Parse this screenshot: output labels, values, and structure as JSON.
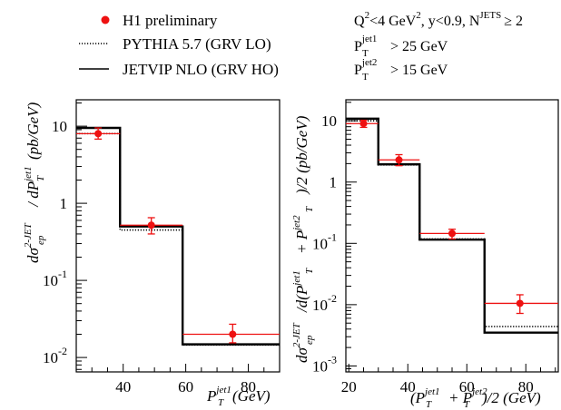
{
  "legend": {
    "h1_label": "H1 preliminary",
    "pythia_label": "PYTHIA 5.7 (GRV LO)",
    "jetvip_label": "JETVIP NLO (GRV HO)",
    "h1_color": "#ee1111",
    "pythia_style": "dotted",
    "jetvip_style": "solid"
  },
  "cuts": {
    "line1": {
      "q2": "Q",
      "q2_sup": "2",
      "q2_rest": "<4 GeV",
      "gev_sup": "2",
      "y_cut": ", y<0.9, N",
      "njets_sup": "JETS",
      "njets_rest": "≥ 2"
    },
    "line2": {
      "p": "P",
      "sup": "jet1",
      "sub": "T",
      "rest": "> 25 GeV"
    },
    "line3": {
      "p": "P",
      "sup": "jet2",
      "sub": "T",
      "rest": "> 15 GeV"
    }
  },
  "chart_data": [
    {
      "type": "line",
      "xlabel_parts": {
        "p": "P",
        "sup": "jet1",
        "sub": "T",
        "rest": "(GeV)"
      },
      "ylabel_parts": {
        "a": "dσ",
        "sup": "2-JET",
        "sub": "ep",
        "b": " / dP",
        "sup2": "jet1",
        "sub2": "T",
        "c": "(pb/GeV)"
      },
      "xlim": [
        25,
        90
      ],
      "ylim": [
        0.0065,
        22
      ],
      "y_scale": "log",
      "x_ticks": [
        40,
        60,
        80
      ],
      "y_ticks": [
        {
          "value": 10,
          "base": "10",
          "exp": ""
        },
        {
          "value": 1,
          "base": "1",
          "exp": ""
        },
        {
          "value": 0.1,
          "base": "10",
          "exp": "-1"
        },
        {
          "value": 0.01,
          "base": "10",
          "exp": "-2"
        }
      ],
      "bin_edges": [
        25,
        39,
        59,
        90
      ],
      "series": [
        {
          "name": "H1 preliminary",
          "kind": "points",
          "x": [
            32,
            49,
            75
          ],
          "y": [
            8.0,
            0.52,
            0.02
          ],
          "y_low": [
            6.8,
            0.4,
            0.0155
          ],
          "y_high": [
            9.5,
            0.65,
            0.027
          ],
          "bin_low": [
            25,
            39,
            59
          ],
          "bin_high": [
            39,
            59,
            90
          ]
        },
        {
          "name": "PYTHIA 5.7 (GRV LO)",
          "kind": "step",
          "values": [
            8.0,
            0.45,
            0.0145
          ]
        },
        {
          "name": "JETVIP NLO (GRV HO)",
          "kind": "step",
          "values": [
            9.5,
            0.5,
            0.0148
          ]
        }
      ]
    },
    {
      "type": "line",
      "xlabel_parts": {
        "a": "(P",
        "sup": "jet1",
        "sub": "T",
        "b": "+ P",
        "sup2": "jet2",
        "sub2": "T",
        "c": ")/2 (GeV)"
      },
      "ylabel_parts": {
        "a": "dσ",
        "sup": "2-JET",
        "sub": "ep",
        "b": "/d(P",
        "sup2": "jet1",
        "sub2": "T",
        "c": "+ P",
        "sup3": "jet2",
        "sub3": "T",
        "d": ")/2 (pb/GeV)"
      },
      "xlim": [
        19,
        91
      ],
      "ylim": [
        0.0008,
        22
      ],
      "y_scale": "log",
      "x_ticks": [
        20,
        40,
        60,
        80
      ],
      "y_ticks": [
        {
          "value": 10,
          "base": "10",
          "exp": ""
        },
        {
          "value": 1,
          "base": "1",
          "exp": ""
        },
        {
          "value": 0.1,
          "base": "10",
          "exp": "-1"
        },
        {
          "value": 0.01,
          "base": "10",
          "exp": "-2"
        },
        {
          "value": 0.001,
          "base": "10",
          "exp": "-3"
        }
      ],
      "bin_edges": [
        19,
        30,
        44,
        66,
        91
      ],
      "series": [
        {
          "name": "H1 preliminary",
          "kind": "points",
          "x": [
            25,
            37,
            55,
            78
          ],
          "y": [
            9.0,
            2.3,
            0.145,
            0.0105
          ],
          "y_low": [
            7.8,
            1.85,
            0.118,
            0.0072
          ],
          "y_high": [
            10.2,
            2.8,
            0.17,
            0.0145
          ],
          "bin_low": [
            19,
            30,
            44,
            66
          ],
          "bin_high": [
            30,
            44,
            66,
            91
          ]
        },
        {
          "name": "PYTHIA 5.7 (GRV LO)",
          "kind": "step",
          "values": [
            10.0,
            1.9,
            0.118,
            0.0044
          ]
        },
        {
          "name": "JETVIP NLO (GRV HO)",
          "kind": "step",
          "values": [
            10.8,
            1.95,
            0.115,
            0.0035
          ]
        }
      ]
    }
  ]
}
